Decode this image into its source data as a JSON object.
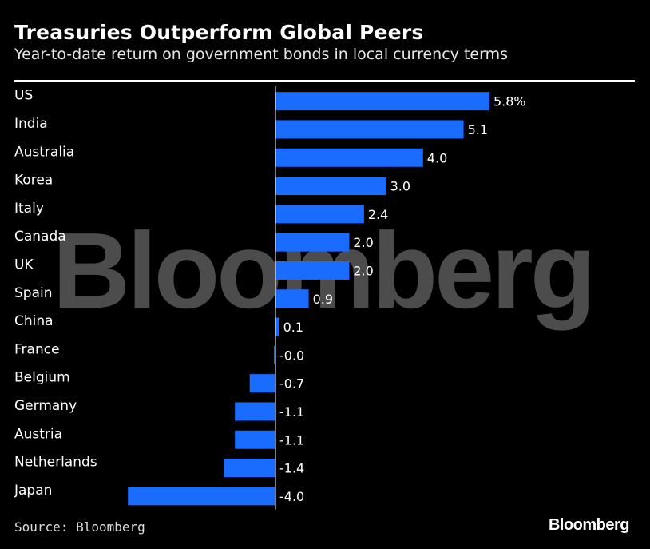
{
  "title": "Treasuries Outperform Global Peers",
  "subtitle": "Year-to-date return on government bonds in local currency terms",
  "source": "Source: Bloomberg",
  "logo": "Bloomberg",
  "watermark": "Bloomberg",
  "colors": {
    "bar": "#1a6cff",
    "background": "#000000",
    "text": "#ffffff"
  },
  "chart_data": {
    "type": "bar",
    "orientation": "horizontal",
    "categories": [
      "US",
      "India",
      "Australia",
      "Korea",
      "Italy",
      "Canada",
      "UK",
      "Spain",
      "China",
      "France",
      "Belgium",
      "Germany",
      "Austria",
      "Netherlands",
      "Japan"
    ],
    "values": [
      5.8,
      5.1,
      4.0,
      3.0,
      2.4,
      2.0,
      2.0,
      0.9,
      0.1,
      -0.02,
      -0.7,
      -1.1,
      -1.1,
      -1.4,
      -4.0
    ],
    "labels": [
      "5.8%",
      "5.1",
      "4.0",
      "3.0",
      "2.4",
      "2.0",
      "2.0",
      "0.9",
      "0.1",
      "-0.0",
      "-0.7",
      "-1.1",
      "-1.1",
      "-1.4",
      "-4.0"
    ],
    "xlim": [
      -4.0,
      5.8
    ],
    "grid": false,
    "legend": "none"
  }
}
